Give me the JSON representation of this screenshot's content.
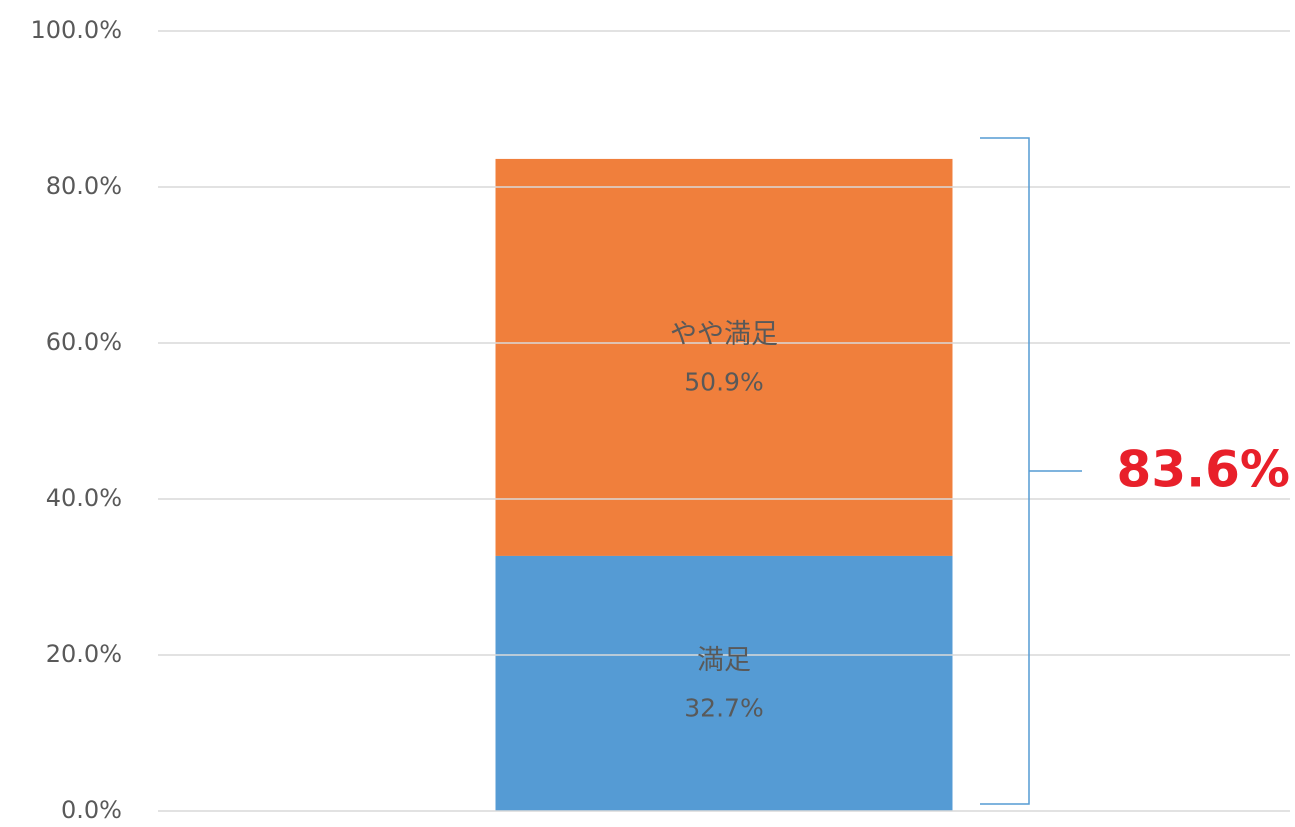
{
  "chart_data": {
    "type": "bar",
    "stacked": true,
    "categories": [
      null
    ],
    "series": [
      {
        "name": "満足",
        "color": "#559bd4",
        "values": [
          32.7
        ],
        "value_labels": [
          "32.7%"
        ]
      },
      {
        "name": "やや満足",
        "color": "#f07f3c",
        "values": [
          50.9
        ],
        "value_labels": [
          "50.9%"
        ]
      }
    ],
    "annotation": "83.6%",
    "ylim": [
      0,
      100
    ],
    "yticks": [
      {
        "value": 0,
        "label": "0.0%"
      },
      {
        "value": 20,
        "label": "20.0%"
      },
      {
        "value": 40,
        "label": "40.0%"
      },
      {
        "value": 60,
        "label": "60.0%"
      },
      {
        "value": 80,
        "label": "80.0%"
      },
      {
        "value": 100,
        "label": "100.0%"
      }
    ],
    "grid": true
  }
}
